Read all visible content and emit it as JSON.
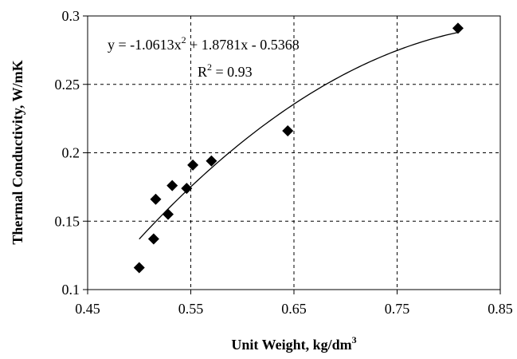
{
  "chart_data": {
    "type": "scatter",
    "xlabel": "Unit Weight, kg/dm",
    "xlabel_superscript": "3",
    "ylabel": "Thermal Conductivity, W/mK",
    "xlim": [
      0.45,
      0.85
    ],
    "ylim": [
      0.1,
      0.3
    ],
    "x_ticks": [
      "0.45",
      "0.55",
      "0.65",
      "0.75",
      "0.85"
    ],
    "y_ticks": [
      "0.1",
      "0.15",
      "0.2",
      "0.25",
      "0.3"
    ],
    "grid": "dashed",
    "marker": "diamond",
    "marker_color": "#000000",
    "points": [
      {
        "x": 0.5,
        "y": 0.116
      },
      {
        "x": 0.514,
        "y": 0.137
      },
      {
        "x": 0.516,
        "y": 0.166
      },
      {
        "x": 0.528,
        "y": 0.155
      },
      {
        "x": 0.532,
        "y": 0.176
      },
      {
        "x": 0.546,
        "y": 0.174
      },
      {
        "x": 0.552,
        "y": 0.191
      },
      {
        "x": 0.57,
        "y": 0.194
      },
      {
        "x": 0.644,
        "y": 0.216
      },
      {
        "x": 0.809,
        "y": 0.291
      }
    ],
    "trendline": {
      "type": "polynomial",
      "degree": 2,
      "coefficients": [
        -1.0613,
        1.8781,
        -0.5368
      ],
      "x_range": [
        0.5,
        0.809
      ],
      "equation_text": "y = -1.0613x",
      "equation_superscript": "2",
      "equation_rest": " + 1.8781x - 0.5368",
      "r2_label": "R",
      "r2_superscript": "2",
      "r2_rest": " = 0.93"
    }
  }
}
